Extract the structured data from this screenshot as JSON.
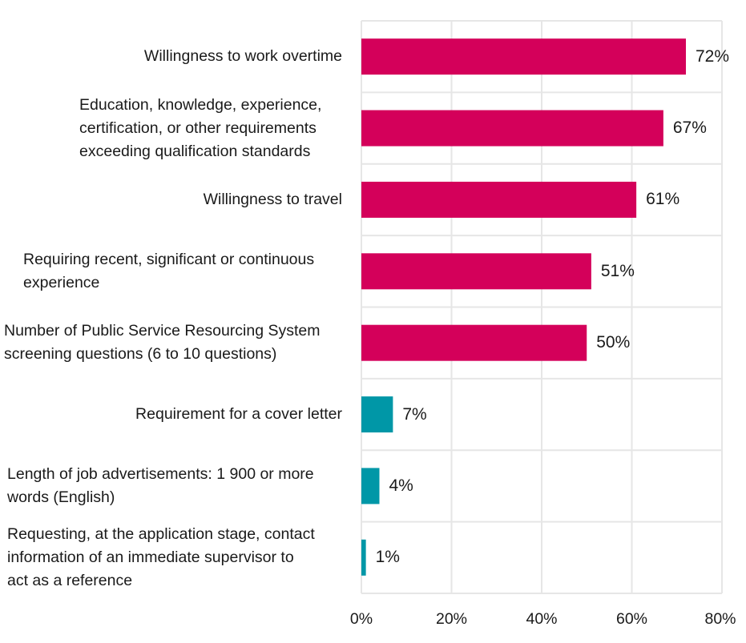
{
  "chart_data": {
    "type": "bar",
    "orientation": "horizontal",
    "categories": [
      [
        "Willingness to work overtime"
      ],
      [
        "Education, knowledge, experience,",
        "certification, or other requirements",
        "exceeding qualification standards"
      ],
      [
        "Willingness to travel"
      ],
      [
        "Requiring recent, significant or continuous",
        "experience"
      ],
      [
        "Number of Public Service Resourcing System",
        "screening questions (6 to 10 questions)"
      ],
      [
        "Requirement for a cover letter"
      ],
      [
        "Length of job advertisements: 1 900 or more",
        "words (English)"
      ],
      [
        "Requesting, at the application stage, contact",
        "information of an immediate supervisor to",
        "act as a reference"
      ]
    ],
    "label_align": [
      "right",
      "left",
      "right",
      "left",
      "left",
      "right",
      "left",
      "left"
    ],
    "values": [
      72,
      67,
      61,
      51,
      50,
      7,
      4,
      1
    ],
    "value_labels": [
      "72%",
      "67%",
      "61%",
      "51%",
      "50%",
      "7%",
      "4%",
      "1%"
    ],
    "bar_colors": [
      "#d4005a",
      "#d4005a",
      "#d4005a",
      "#d4005a",
      "#d4005a",
      "#0097a7",
      "#0097a7",
      "#0097a7"
    ],
    "xlim": [
      0,
      80
    ],
    "x_ticks": [
      0,
      20,
      40,
      60,
      80
    ],
    "x_tick_labels": [
      "0%",
      "20%",
      "40%",
      "60%",
      "80%"
    ],
    "grid": true,
    "grid_color": "#e6e6e6",
    "title": "",
    "xlabel": "",
    "ylabel": ""
  }
}
